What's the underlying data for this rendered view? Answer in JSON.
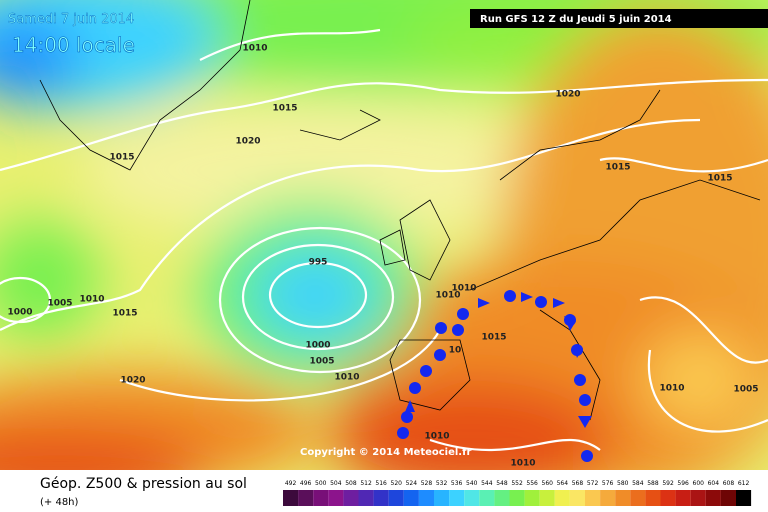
{
  "header": {
    "date": "Samedi 7 juin 2014",
    "time": "14:00 locale",
    "run": "Run GFS 12 Z du Jeudi 5 juin 2014"
  },
  "map": {
    "isobar_labels": [
      "1010",
      "1015",
      "1015",
      "1020",
      "1020",
      "1015",
      "1015",
      "995",
      "1000",
      "1005",
      "1010",
      "1005",
      "1010",
      "1000",
      "1015",
      "1020",
      "1010",
      "1010",
      "10",
      "1015",
      "1010",
      "1005",
      "1010",
      "1010"
    ],
    "copyright": "Copyright © 2014 Meteociel.fr"
  },
  "footer": {
    "title": "Géop. Z500 & pression au sol",
    "lead": "(+ 48h)",
    "scale": {
      "labels": [
        "492",
        "496",
        "500",
        "504",
        "508",
        "512",
        "516",
        "520",
        "524",
        "528",
        "532",
        "536",
        "540",
        "544",
        "548",
        "552",
        "556",
        "560",
        "564",
        "568",
        "572",
        "576",
        "580",
        "584",
        "588",
        "592",
        "596",
        "600",
        "604",
        "608",
        "612"
      ],
      "colors": [
        "#3c0a3c",
        "#5a0f5a",
        "#780f78",
        "#8c148c",
        "#6e1ea0",
        "#5028b4",
        "#3232c8",
        "#1e46dc",
        "#1464f0",
        "#1e8cff",
        "#28b4ff",
        "#3cd2ff",
        "#50e6e6",
        "#5af0b4",
        "#64f082",
        "#78f050",
        "#a0f03c",
        "#c8f03c",
        "#f0f050",
        "#fae664",
        "#fac850",
        "#f5aa3c",
        "#f08c28",
        "#eb6e1e",
        "#e65014",
        "#dc3214",
        "#c81e14",
        "#aa1414",
        "#8c0a0a",
        "#6e0505",
        "#000000"
      ]
    }
  }
}
